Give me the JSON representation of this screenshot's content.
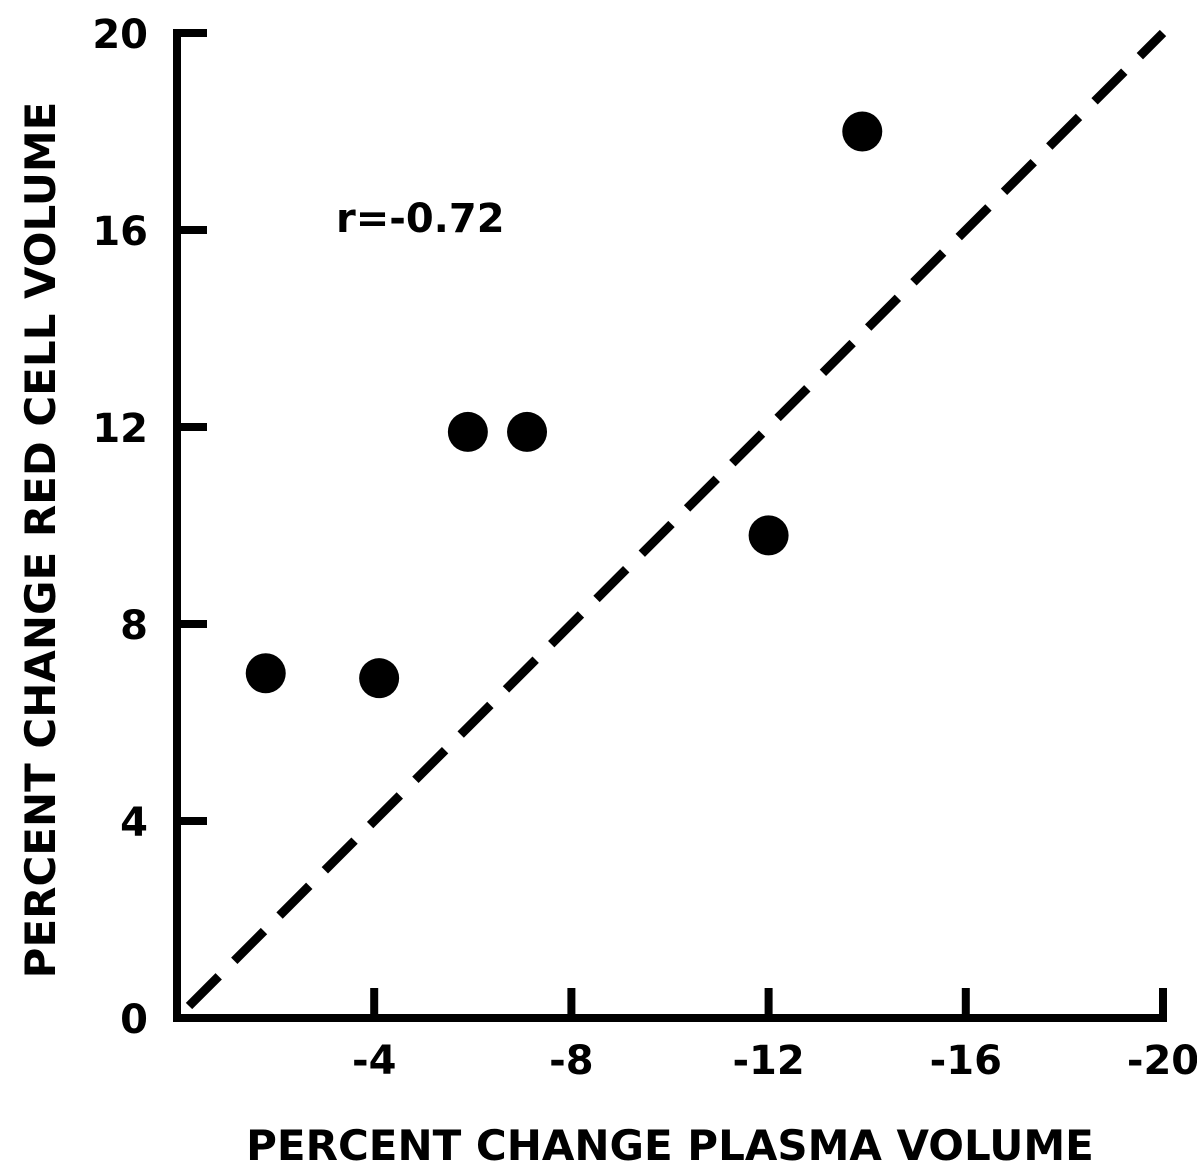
{
  "chart_data": {
    "type": "scatter",
    "title": "",
    "xlabel": "PERCENT CHANGE PLASMA VOLUME",
    "ylabel": "PERCENT CHANGE RED CELL VOLUME",
    "xlim": [
      0,
      -20
    ],
    "ylim": [
      0,
      20
    ],
    "x_ticks": [
      -4,
      -8,
      -12,
      -16,
      -20
    ],
    "x_tick_labels": [
      "-4",
      "-8",
      "-12",
      "-16",
      "-20"
    ],
    "y_ticks": [
      0,
      4,
      8,
      12,
      16,
      20
    ],
    "y_tick_labels": [
      "0",
      "4",
      "8",
      "12",
      "16",
      "20"
    ],
    "grid": false,
    "annotation": "r=-0.72",
    "points": [
      {
        "x": -1.8,
        "y": 7.0
      },
      {
        "x": -4.1,
        "y": 6.9
      },
      {
        "x": -5.9,
        "y": 11.9
      },
      {
        "x": -7.1,
        "y": 11.9
      },
      {
        "x": -12.0,
        "y": 9.8
      },
      {
        "x": -13.9,
        "y": 18.0
      }
    ],
    "reference_line": {
      "style": "dashed",
      "from": {
        "x": 0,
        "y": 0
      },
      "to": {
        "x": -20,
        "y": 20
      }
    }
  }
}
